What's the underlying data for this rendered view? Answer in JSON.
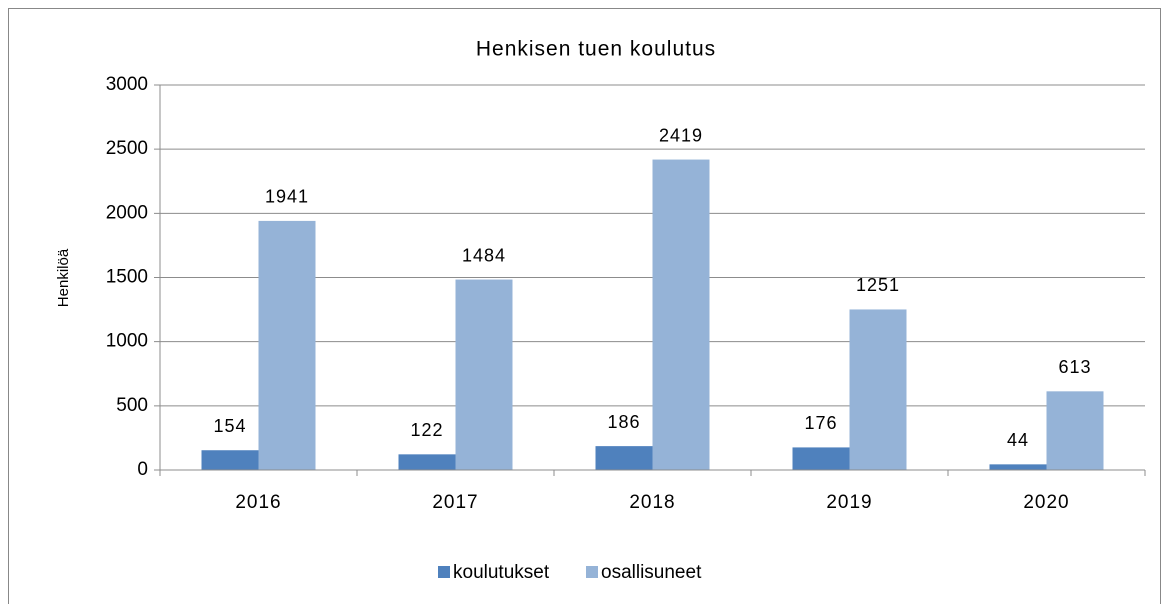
{
  "chart_data": {
    "type": "bar",
    "title": "Henkisen tuen koulutus",
    "y_label": "Henkilöä",
    "categories": [
      "2016",
      "2017",
      "2018",
      "2019",
      "2020"
    ],
    "series": [
      {
        "name": "koulutukset",
        "color": "#4f81bd",
        "values": [
          154,
          122,
          186,
          176,
          44
        ]
      },
      {
        "name": "osallisuneet",
        "color": "#95b3d7",
        "values": [
          1941,
          1484,
          2419,
          1251,
          613
        ]
      }
    ],
    "ylim": [
      0,
      3000
    ],
    "yticks": [
      0,
      500,
      1000,
      1500,
      2000,
      2500,
      3000
    ],
    "grid": true,
    "legend": "bottom"
  }
}
